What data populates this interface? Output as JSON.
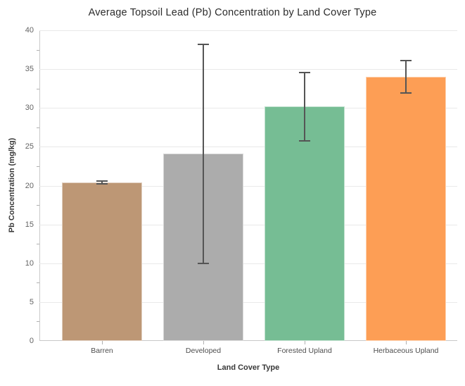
{
  "chart_data": {
    "type": "bar",
    "title": "Average Topsoil Lead (Pb) Concentration by Land Cover Type",
    "xlabel": "Land Cover Type",
    "ylabel": "Pb Concentration (mg/kg)",
    "categories": [
      "Barren",
      "Developed",
      "Forested Upland",
      "Herbaceous Upland"
    ],
    "values": [
      20.4,
      24.1,
      30.2,
      34.0
    ],
    "error_bars": [
      0.2,
      14.1,
      4.4,
      2.1
    ],
    "ylim": [
      0,
      40
    ],
    "yticks": [
      0,
      5,
      10,
      15,
      20,
      25,
      30,
      35,
      40
    ],
    "minor_tick_step": 2.5,
    "grid": "horizontal-major",
    "legend_position": "none",
    "bar_colors": [
      "#bd9775",
      "#acacac",
      "#76bd94",
      "#fd9e55"
    ],
    "error_bar_color": "#555555",
    "grid_color": "#e9e9e9",
    "axis_line_color": "#c9c9c9",
    "tick_color": "#b0b0b0"
  }
}
